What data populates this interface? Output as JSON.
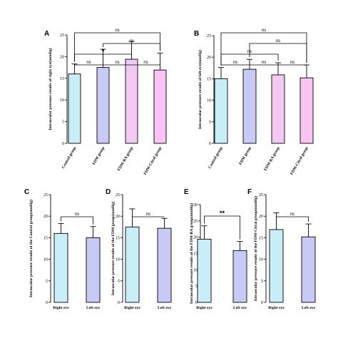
{
  "colors": {
    "control": "#c9eef8",
    "fdm": "#c9c9f5",
    "fdm_ra": "#f1c9f3",
    "fdm_citral": "#f9c3f2",
    "right_eye": "#c9eef8",
    "left_eye": "#c9c9f5",
    "stroke": "#000000"
  },
  "chart_data": [
    {
      "panel": "A",
      "type": "bar",
      "ylabel": "Intraocular pressure results of right eye(mmHg)",
      "categories": [
        "Control group",
        "FDM group",
        "FDM-RA group",
        "FDM-Citral group"
      ],
      "values": [
        16.0,
        17.5,
        19.4,
        16.9
      ],
      "errors": [
        2.3,
        4.2,
        4.1,
        3.9
      ],
      "ylim": [
        0,
        25
      ],
      "yticks": [
        0,
        5,
        10,
        15,
        20,
        25
      ],
      "comparisons": [
        {
          "from": 0,
          "to": 1,
          "label": "ns",
          "level": 0
        },
        {
          "from": 1,
          "to": 2,
          "label": "ns",
          "level": 0
        },
        {
          "from": 2,
          "to": 3,
          "label": "ns",
          "level": 0
        },
        {
          "from": 0,
          "to": 2,
          "label": "*",
          "level": 1
        },
        {
          "from": 1,
          "to": 3,
          "label": "ns",
          "level": 2
        },
        {
          "from": 0,
          "to": 3,
          "label": "ns",
          "level": 3
        }
      ]
    },
    {
      "panel": "B",
      "type": "bar",
      "ylabel": "Intraocular pressure results of left eye(mmHg)",
      "categories": [
        "Control group",
        "FDM group",
        "FDM-RA group",
        "FDM-Citral group"
      ],
      "values": [
        15.0,
        17.2,
        15.9,
        15.2
      ],
      "errors": [
        2.6,
        2.3,
        2.8,
        3.0
      ],
      "ylim": [
        0,
        25
      ],
      "yticks": [
        0,
        5,
        10,
        15,
        20,
        25
      ],
      "comparisons": [
        {
          "from": 0,
          "to": 1,
          "label": "ns",
          "level": 0
        },
        {
          "from": 1,
          "to": 2,
          "label": "ns",
          "level": 0
        },
        {
          "from": 2,
          "to": 3,
          "label": "ns",
          "level": 0
        },
        {
          "from": 0,
          "to": 2,
          "label": "ns",
          "level": 1
        },
        {
          "from": 1,
          "to": 3,
          "label": "ns",
          "level": 2
        },
        {
          "from": 0,
          "to": 3,
          "label": "ns",
          "level": 3
        }
      ]
    },
    {
      "panel": "C",
      "type": "bar",
      "ylabel": "Intraocular pressure results of the Control group(mmHg)",
      "categories": [
        "Right eye",
        "Left eye"
      ],
      "values": [
        16.0,
        15.0
      ],
      "errors": [
        2.3,
        2.6
      ],
      "ylim": [
        0,
        25
      ],
      "yticks": [
        0,
        5,
        10,
        15,
        20,
        25
      ],
      "comparisons": [
        {
          "from": 0,
          "to": 1,
          "label": "ns",
          "level": 0
        }
      ]
    },
    {
      "panel": "D",
      "type": "bar",
      "ylabel": "Intraocular pressure results of the FDM group(mmHg)",
      "categories": [
        "Right eye",
        "Left eye"
      ],
      "values": [
        17.5,
        17.2
      ],
      "errors": [
        4.2,
        2.3
      ],
      "ylim": [
        0,
        25
      ],
      "yticks": [
        0,
        5,
        10,
        15,
        20,
        25
      ],
      "comparisons": [
        {
          "from": 0,
          "to": 1,
          "label": "ns",
          "level": 0
        }
      ]
    },
    {
      "panel": "E",
      "type": "bar",
      "ylabel": "Intraocular pressure results of the FDM-RA group(mmHg)",
      "categories": [
        "Right eye",
        "Left eye"
      ],
      "values": [
        19.4,
        15.9
      ],
      "errors": [
        4.1,
        2.8
      ],
      "ylim": [
        0,
        30
      ],
      "yticks": [
        0,
        5,
        10,
        15,
        20,
        25,
        30
      ],
      "comparisons": [
        {
          "from": 0,
          "to": 1,
          "label": "**",
          "level": 0
        }
      ]
    },
    {
      "panel": "F",
      "type": "bar",
      "ylabel": "Intraocular pressure results of the FDM-Citral group(mmHg)",
      "categories": [
        "Right eye",
        "Left eye"
      ],
      "values": [
        16.9,
        15.2
      ],
      "errors": [
        3.9,
        3.0
      ],
      "ylim": [
        0,
        25
      ],
      "yticks": [
        0,
        5,
        10,
        15,
        20,
        25
      ],
      "comparisons": [
        {
          "from": 0,
          "to": 1,
          "label": "ns",
          "level": 0
        }
      ]
    }
  ]
}
